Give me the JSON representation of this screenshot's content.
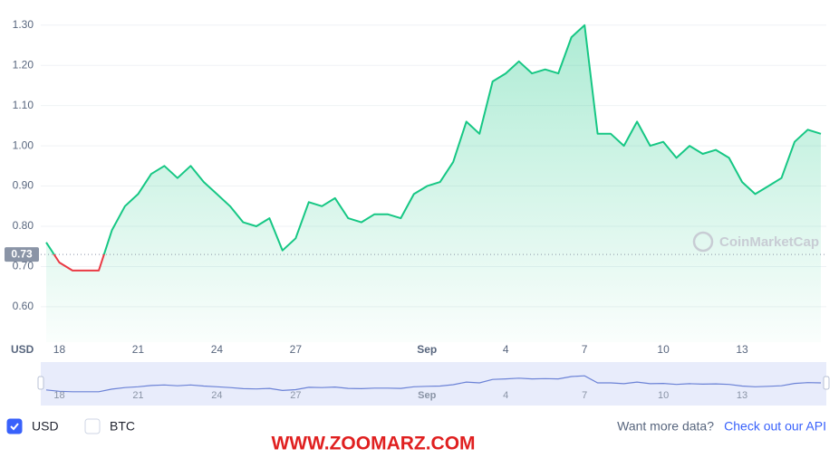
{
  "chart_data": {
    "type": "line",
    "categories": [
      null,
      "18",
      null,
      null,
      null,
      null,
      null,
      "21",
      null,
      null,
      null,
      null,
      null,
      "24",
      null,
      null,
      null,
      null,
      null,
      "27",
      null,
      null,
      null,
      null,
      null,
      null,
      null,
      null,
      null,
      "Sep",
      null,
      null,
      null,
      null,
      null,
      "4",
      null,
      null,
      null,
      null,
      null,
      "7",
      null,
      null,
      null,
      null,
      null,
      "10",
      null,
      null,
      null,
      null,
      null,
      "13",
      null,
      null,
      null,
      null,
      null,
      null
    ],
    "series": [
      {
        "name": "USD",
        "color": "#16c784",
        "below_color": "#ea3943",
        "values": [
          0.76,
          0.71,
          0.69,
          0.69,
          0.69,
          0.79,
          0.85,
          0.88,
          0.93,
          0.95,
          0.92,
          0.95,
          0.91,
          0.88,
          0.85,
          0.81,
          0.8,
          0.82,
          0.74,
          0.77,
          0.86,
          0.85,
          0.87,
          0.82,
          0.81,
          0.83,
          0.83,
          0.82,
          0.88,
          0.9,
          0.91,
          0.96,
          1.06,
          1.03,
          1.16,
          1.18,
          1.21,
          1.18,
          1.19,
          1.18,
          1.27,
          1.3,
          1.03,
          1.03,
          1.0,
          1.06,
          1.0,
          1.01,
          0.97,
          1.0,
          0.98,
          0.99,
          0.97,
          0.91,
          0.88,
          0.9,
          0.92,
          1.01,
          1.04,
          1.03
        ]
      }
    ],
    "reference_value": 0.73,
    "reference_label": "0.73",
    "ylabel": "USD",
    "ylim": [
      0.512,
      1.34
    ],
    "yticks": [
      {
        "value": 0.6,
        "label": "0.60"
      },
      {
        "value": 0.7,
        "label": "0.70"
      },
      {
        "value": 0.8,
        "label": "0.80"
      },
      {
        "value": 0.9,
        "label": "0.90"
      },
      {
        "value": 1.0,
        "label": "1.00"
      },
      {
        "value": 1.1,
        "label": "1.10"
      },
      {
        "value": 1.2,
        "label": "1.20"
      },
      {
        "value": 1.3,
        "label": "1.30"
      }
    ],
    "grid": true,
    "watermark": "CoinMarketCap",
    "legend": [
      {
        "label": "USD",
        "checked": true
      },
      {
        "label": "BTC",
        "checked": false
      }
    ],
    "footer_text": "Want more data?",
    "footer_link": "Check out our API",
    "site_watermark": "WWW.ZOOMARZ.COM"
  }
}
